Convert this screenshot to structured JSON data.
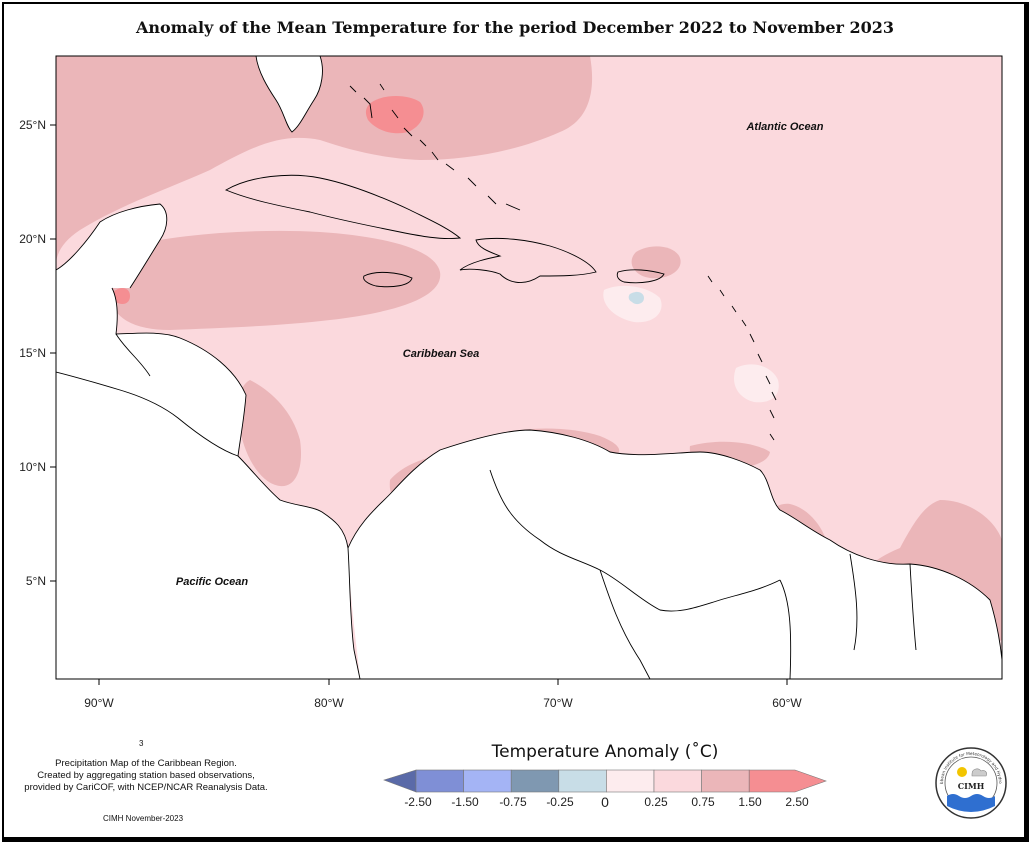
{
  "title": "Anomaly of the Mean Temperature for the period December 2022 to November 2023",
  "lat_ticks": [
    "25°N",
    "20°N",
    "15°N",
    "10°N",
    "5°N"
  ],
  "lon_ticks": [
    "90°W",
    "80°W",
    "70°W",
    "60°W"
  ],
  "ocean_labels": {
    "atlantic": "Atlantic Ocean",
    "caribbean": "Caribbean Sea",
    "pacific": "Pacific Ocean"
  },
  "legend": {
    "title": "Temperature Anomaly (˚C)",
    "bins": [
      {
        "color": "#5a6aa8"
      },
      {
        "color": "#7f8fd6"
      },
      {
        "color": "#a4b4f5"
      },
      {
        "color": "#7f98b1"
      },
      {
        "color": "#c8dde7"
      },
      {
        "color": "#fdecee"
      },
      {
        "color": "#fbd9dd"
      },
      {
        "color": "#ebb6b9"
      },
      {
        "color": "#f58e92"
      }
    ],
    "tick_labels": [
      "-2.50",
      "-1.50",
      "-0.75",
      "-0.25",
      "0",
      "0.25",
      "0.75",
      "1.50",
      "2.50"
    ]
  },
  "footer": {
    "stray_mark": "3",
    "note_lines": [
      "Precipitation Map of the Caribbean Region.",
      "Created by aggregating station based observations,",
      "provided by CariCOF, with NCEP/NCAR Reanalysis Data."
    ],
    "credit": "CIMH November-2023"
  },
  "logo": {
    "acronym": "CIMH",
    "ring_text": "Caribbean Institute for Meteorology and Hydrology"
  },
  "colors": {
    "base_anomaly": "#fbd9dd",
    "warm_anomaly": "#ebb6b9",
    "hot_anomaly": "#f58e92",
    "near_zero": "#fdecee",
    "slight_cool": "#c8dde7"
  }
}
